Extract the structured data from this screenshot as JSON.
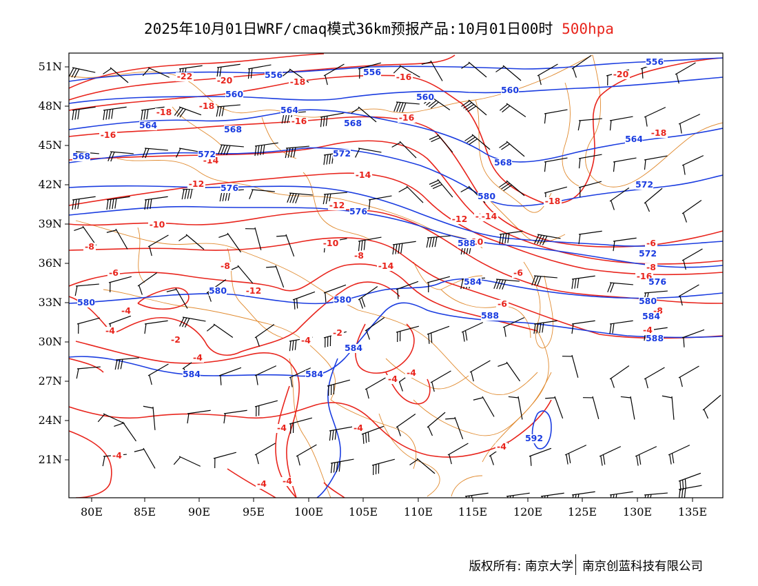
{
  "title": {
    "main": "2025年10月01日WRF/cmaq模式36km预报产品:10月01日00时",
    "level": "500hpa"
  },
  "colors": {
    "temperature": "#e8241c",
    "height": "#1a3ce0",
    "border": "#e0892d",
    "wind": "#000000"
  },
  "axes": {
    "lon_labels": [
      "80E",
      "85E",
      "90E",
      "95E",
      "100E",
      "105E",
      "110E",
      "115E",
      "120E",
      "125E",
      "130E",
      "135E"
    ],
    "lat_labels": [
      "51N",
      "48N",
      "45N",
      "42N",
      "39N",
      "36N",
      "33N",
      "30N",
      "27N",
      "24N",
      "21N"
    ]
  },
  "contour_labels": {
    "temperature": [
      "-22",
      "-20",
      "-18",
      "-20",
      "-18",
      "-16",
      "-18",
      "-16",
      "-16",
      "-16",
      "-18",
      "-14",
      "-14",
      "-12",
      "-12",
      "-12",
      "-12",
      "-14",
      "-18",
      "-10",
      "-10",
      "-10",
      "-8",
      "-8",
      "-8",
      "-6",
      "-8",
      "-16",
      "-14",
      "-12",
      "-6",
      "-6",
      "-6",
      "-8",
      "-4",
      "-4",
      "-2",
      "-2",
      "-4",
      "-4",
      "-4",
      "-4",
      "-4",
      "-4",
      "-4",
      "-4",
      "-4",
      "-4",
      "-4"
    ],
    "height": [
      "556",
      "556",
      "556",
      "560",
      "560",
      "560",
      "564",
      "564",
      "568",
      "568",
      "568",
      "568",
      "564",
      "572",
      "572",
      "572",
      "576",
      "576",
      "580",
      "580",
      "580",
      "580",
      "584",
      "584",
      "584",
      "584",
      "584",
      "588",
      "588",
      "588",
      "592",
      "572",
      "576",
      "580",
      "584",
      "588"
    ]
  },
  "footer": {
    "copyright": "版权所有: 南京大学",
    "company": "南京创蓝科技有限公司"
  }
}
